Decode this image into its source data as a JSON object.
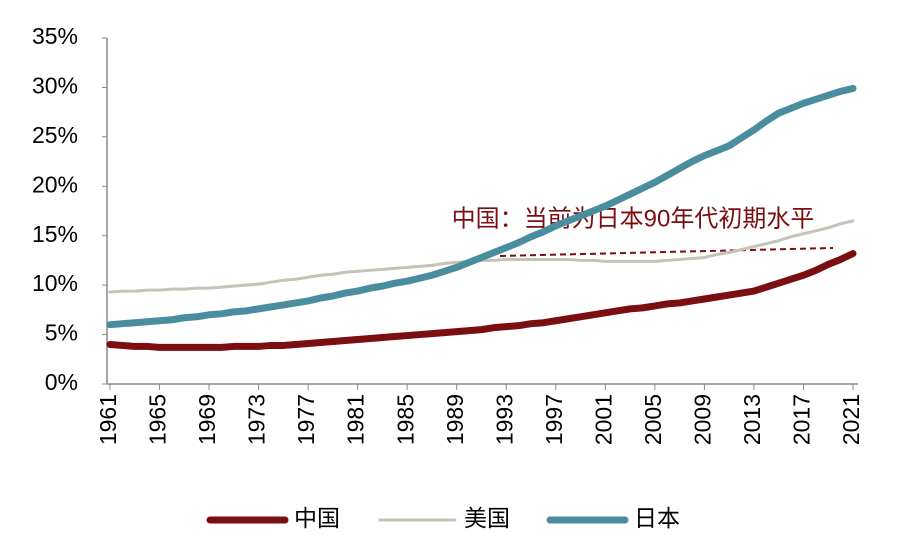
{
  "chart_data": {
    "type": "line",
    "x": [
      1961,
      1962,
      1963,
      1964,
      1965,
      1966,
      1967,
      1968,
      1969,
      1970,
      1971,
      1972,
      1973,
      1974,
      1975,
      1976,
      1977,
      1978,
      1979,
      1980,
      1981,
      1982,
      1983,
      1984,
      1985,
      1986,
      1987,
      1988,
      1989,
      1990,
      1991,
      1992,
      1993,
      1994,
      1995,
      1996,
      1997,
      1998,
      1999,
      2000,
      2001,
      2002,
      2003,
      2004,
      2005,
      2006,
      2007,
      2008,
      2009,
      2010,
      2011,
      2012,
      2013,
      2014,
      2015,
      2016,
      2017,
      2018,
      2019,
      2020,
      2021
    ],
    "series": [
      {
        "name": "中国",
        "color": "#7a0e10",
        "width": 7,
        "values": [
          4.0,
          3.9,
          3.8,
          3.8,
          3.7,
          3.7,
          3.7,
          3.7,
          3.7,
          3.7,
          3.8,
          3.8,
          3.8,
          3.9,
          3.9,
          4.0,
          4.1,
          4.2,
          4.3,
          4.4,
          4.5,
          4.6,
          4.7,
          4.8,
          4.9,
          5.0,
          5.1,
          5.2,
          5.3,
          5.4,
          5.5,
          5.7,
          5.8,
          5.9,
          6.1,
          6.2,
          6.4,
          6.6,
          6.8,
          7.0,
          7.2,
          7.4,
          7.6,
          7.7,
          7.9,
          8.1,
          8.2,
          8.4,
          8.6,
          8.8,
          9.0,
          9.2,
          9.4,
          9.8,
          10.2,
          10.6,
          11.0,
          11.5,
          12.1,
          12.6,
          13.2
        ]
      },
      {
        "name": "美国",
        "color": "#c4c3b6",
        "width": 3,
        "values": [
          9.3,
          9.4,
          9.4,
          9.5,
          9.5,
          9.6,
          9.6,
          9.7,
          9.7,
          9.8,
          9.9,
          10.0,
          10.1,
          10.3,
          10.5,
          10.6,
          10.8,
          11.0,
          11.1,
          11.3,
          11.4,
          11.5,
          11.6,
          11.7,
          11.8,
          11.9,
          12.0,
          12.2,
          12.3,
          12.4,
          12.5,
          12.5,
          12.6,
          12.6,
          12.6,
          12.6,
          12.6,
          12.6,
          12.5,
          12.5,
          12.4,
          12.4,
          12.4,
          12.4,
          12.4,
          12.5,
          12.6,
          12.7,
          12.8,
          13.1,
          13.3,
          13.6,
          13.9,
          14.2,
          14.5,
          14.9,
          15.2,
          15.5,
          15.8,
          16.2,
          16.5
        ]
      },
      {
        "name": "日本",
        "color": "#4a8d9f",
        "width": 7,
        "values": [
          6.0,
          6.1,
          6.2,
          6.3,
          6.4,
          6.5,
          6.7,
          6.8,
          7.0,
          7.1,
          7.3,
          7.4,
          7.6,
          7.8,
          8.0,
          8.2,
          8.4,
          8.7,
          8.9,
          9.2,
          9.4,
          9.7,
          9.9,
          10.2,
          10.4,
          10.7,
          11.0,
          11.4,
          11.8,
          12.3,
          12.8,
          13.3,
          13.8,
          14.3,
          14.9,
          15.4,
          16.0,
          16.5,
          17.0,
          17.5,
          18.0,
          18.6,
          19.2,
          19.8,
          20.4,
          21.1,
          21.8,
          22.5,
          23.1,
          23.6,
          24.1,
          24.9,
          25.7,
          26.6,
          27.4,
          27.9,
          28.4,
          28.8,
          29.2,
          29.6,
          29.9
        ]
      }
    ],
    "xlim": [
      1961,
      2021
    ],
    "xticks": [
      1961,
      1965,
      1969,
      1973,
      1977,
      1981,
      1985,
      1989,
      1993,
      1997,
      2001,
      2005,
      2009,
      2013,
      2017,
      2021
    ],
    "ylim": [
      0,
      35
    ],
    "yticks": [
      {
        "value": 0,
        "label": "0%"
      },
      {
        "value": 5,
        "label": "5%"
      },
      {
        "value": 10,
        "label": "10%"
      },
      {
        "value": 15,
        "label": "15%"
      },
      {
        "value": 20,
        "label": "20%"
      },
      {
        "value": 25,
        "label": "25%"
      },
      {
        "value": 30,
        "label": "30%"
      },
      {
        "value": 35,
        "label": "35%"
      }
    ],
    "annotation": "中国：当前为日本90年代初期水平",
    "legend": "bottom"
  }
}
